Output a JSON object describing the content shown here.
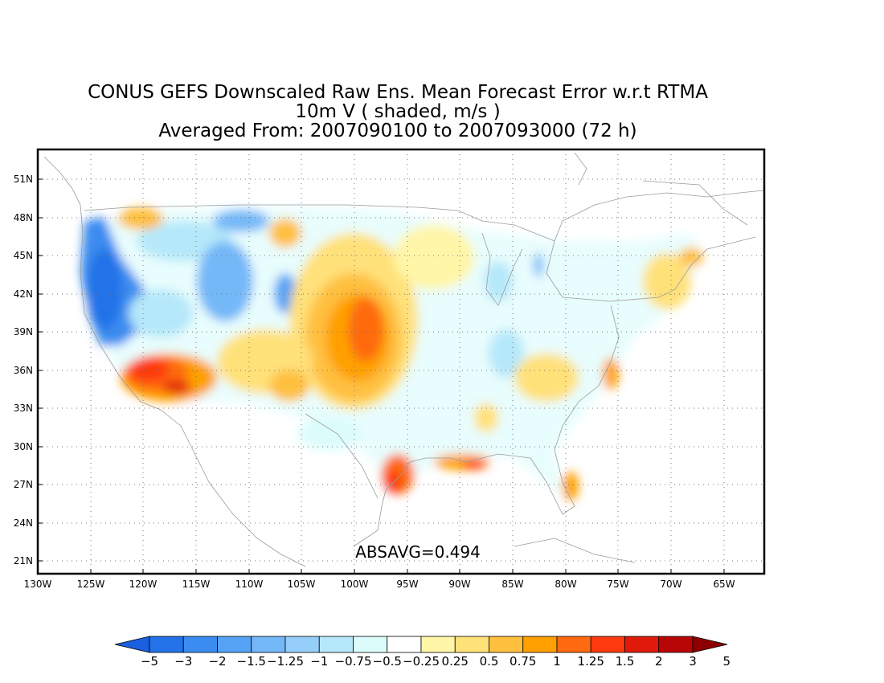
{
  "title": {
    "line1": "CONUS GEFS Downscaled Raw Ens. Mean Forecast Error w.r.t RTMA",
    "line2": "10m V ( shaded, m/s )",
    "line3": "Averaged From: 2007090100 to 2007093000 (72 h)"
  },
  "map": {
    "lon_range": [
      -130,
      -61
    ],
    "lat_range": [
      19.5,
      52.5
    ],
    "lon_ticks": [
      "130W",
      "125W",
      "120W",
      "115W",
      "110W",
      "105W",
      "100W",
      "95W",
      "90W",
      "85W",
      "80W",
      "75W",
      "70W",
      "65W"
    ],
    "lat_ticks": [
      "51N",
      "48N",
      "45N",
      "42N",
      "39N",
      "36N",
      "33N",
      "30N",
      "27N",
      "24N",
      "21N"
    ],
    "annotation": "ABSAVG=0.494",
    "grid": "dotted"
  },
  "colorbar": {
    "labels": [
      "-5",
      "-3",
      "-2",
      "-1.5",
      "-1.25",
      "-1",
      "-0.75",
      "-0.5",
      "-0.25",
      "0.25",
      "0.5",
      "0.75",
      "1",
      "1.25",
      "1.5",
      "2",
      "3",
      "5"
    ],
    "colors": [
      "#1a5fe0",
      "#2472e8",
      "#3a8cf0",
      "#56a3f5",
      "#74b8f8",
      "#96cefa",
      "#b5e8fa",
      "#dcfcfc",
      "#ffffff",
      "#fff6a8",
      "#ffe17a",
      "#ffc040",
      "#ffa000",
      "#ff6a10",
      "#ff3a10",
      "#e01a0a",
      "#b80606",
      "#8c0000"
    ]
  }
}
